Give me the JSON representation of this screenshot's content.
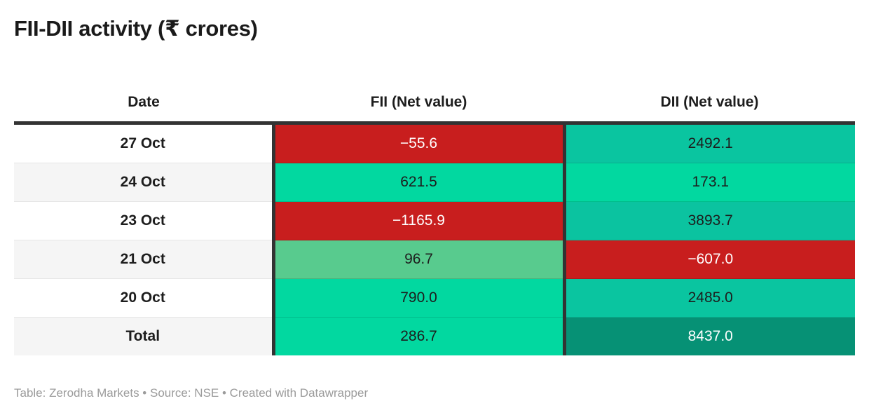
{
  "title": "FII-DII activity (₹ crores)",
  "table": {
    "columns": [
      {
        "id": "date",
        "label": "Date"
      },
      {
        "id": "fii",
        "label": "FII (Net value)"
      },
      {
        "id": "dii",
        "label": "DII (Net value)"
      }
    ],
    "rows": [
      {
        "date": "27 Oct",
        "fii": {
          "text": "−55.6",
          "bg": "#c81e1e",
          "fg": "#ffffff"
        },
        "dii": {
          "text": "2492.1",
          "bg": "#0ac5a0",
          "fg": "#1d1d1d"
        }
      },
      {
        "date": "24 Oct",
        "fii": {
          "text": "621.5",
          "bg": "#02d8a0",
          "fg": "#1d1d1d"
        },
        "dii": {
          "text": "173.1",
          "bg": "#02d8a0",
          "fg": "#1d1d1d"
        }
      },
      {
        "date": "23 Oct",
        "fii": {
          "text": "−1165.9",
          "bg": "#c81e1e",
          "fg": "#ffffff"
        },
        "dii": {
          "text": "3893.7",
          "bg": "#0bc3a0",
          "fg": "#1d1d1d"
        }
      },
      {
        "date": "21 Oct",
        "fii": {
          "text": "96.7",
          "bg": "#58cb8e",
          "fg": "#1d1d1d"
        },
        "dii": {
          "text": "−607.0",
          "bg": "#c81e1e",
          "fg": "#ffffff"
        }
      },
      {
        "date": "20 Oct",
        "fii": {
          "text": "790.0",
          "bg": "#02d8a0",
          "fg": "#1d1d1d"
        },
        "dii": {
          "text": "2485.0",
          "bg": "#0ac5a0",
          "fg": "#1d1d1d"
        }
      },
      {
        "date": "Total",
        "fii": {
          "text": "286.7",
          "bg": "#02d8a0",
          "fg": "#1d1d1d"
        },
        "dii": {
          "text": "8437.0",
          "bg": "#069175",
          "fg": "#ffffff"
        }
      }
    ]
  },
  "footer": {
    "text": "Table: Zerodha Markets • Source: NSE • Created with Datawrapper"
  },
  "colors": {
    "negative_red": "#c81e1e",
    "positive_bright_green": "#02d8a0",
    "positive_teal": "#0ac5a0",
    "positive_muted_green": "#58cb8e",
    "total_dark_teal": "#069175",
    "divider_dark": "#333333",
    "row_stripe": "#f5f5f5",
    "text_dark": "#1d1d1d",
    "footer_gray": "#9b9b9b"
  },
  "chart_data": {
    "type": "table",
    "title": "FII-DII activity (₹ crores)",
    "columns": [
      "Date",
      "FII (Net value)",
      "DII (Net value)"
    ],
    "rows": [
      [
        "27 Oct",
        -55.6,
        2492.1
      ],
      [
        "24 Oct",
        621.5,
        173.1
      ],
      [
        "23 Oct",
        -1165.9,
        3893.7
      ],
      [
        "21 Oct",
        96.7,
        -607.0
      ],
      [
        "20 Oct",
        790.0,
        2485.0
      ],
      [
        "Total",
        286.7,
        8437.0
      ]
    ],
    "cell_coloring": "diverging heatmap: red = negative values (white text), bright green/teal = positive values (dark text), dark teal = largest total (white text)",
    "legend_position": "none",
    "grid": "off"
  }
}
